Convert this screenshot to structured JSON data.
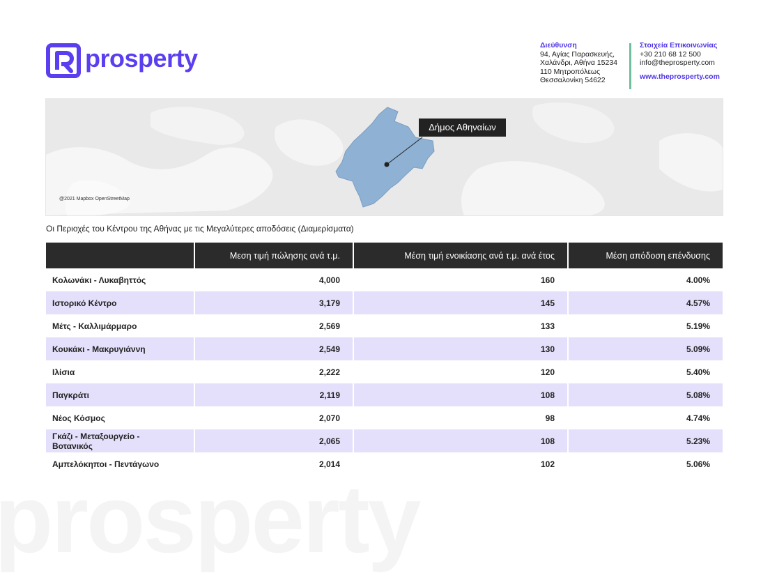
{
  "brand": {
    "name": "prosperty",
    "accent": "#5a3ff0",
    "watermark": "prosperty"
  },
  "address": {
    "heading": "Διεύθυνση",
    "line1": "94, Αγίας Παρασκευής,",
    "line2": "Χαλάνδρι, Αθήνα 15234",
    "line3": "110 Μητροπόλεως",
    "line4": "Θεσσαλονίκη 54622"
  },
  "contact": {
    "heading": "Στοιχεία Επικοινωνίας",
    "phone": "+30 210 68 12 500",
    "email": "info@theprosperty.com",
    "website": "www.theprosperty.com"
  },
  "map": {
    "callout": "Δήμος Αθηναίων",
    "credit": "@2021 Mapbox OpenStreetMap",
    "region_color": "#8fb1d3"
  },
  "caption": "Οι Περιοχές του Κέντρου της Αθήνας με τις Μεγαλύτερες αποδόσεις (Διαμερίσματα)",
  "table": {
    "headers": [
      "",
      "Μεση τιμή πώλησης ανά τ.μ.",
      "Μέση τιμή ενοικίασης ανά τ.μ. ανά έτος",
      "Μέση απόδοση επένδυσης"
    ],
    "rows": [
      [
        "Κολωνάκι - Λυκαβηττός",
        "4,000",
        "160",
        "4.00%"
      ],
      [
        "Ιστορικό Κέντρο",
        "3,179",
        "145",
        "4.57%"
      ],
      [
        "Μέτς - Καλλιμάρμαρο",
        "2,569",
        "133",
        "5.19%"
      ],
      [
        "Κουκάκι - Μακρυγιάννη",
        "2,549",
        "130",
        "5.09%"
      ],
      [
        "Ιλίσια",
        "2,222",
        "120",
        "5.40%"
      ],
      [
        "Παγκράτι",
        "2,119",
        "108",
        "5.08%"
      ],
      [
        "Νέος Κόσμος",
        "2,070",
        "98",
        "4.74%"
      ],
      [
        "Γκάζι - Μεταξουργείο - Βοτανικός",
        "2,065",
        "108",
        "5.23%"
      ],
      [
        "Αμπελόκηποι - Πεντάγωνο",
        "2,014",
        "102",
        "5.06%"
      ]
    ]
  }
}
